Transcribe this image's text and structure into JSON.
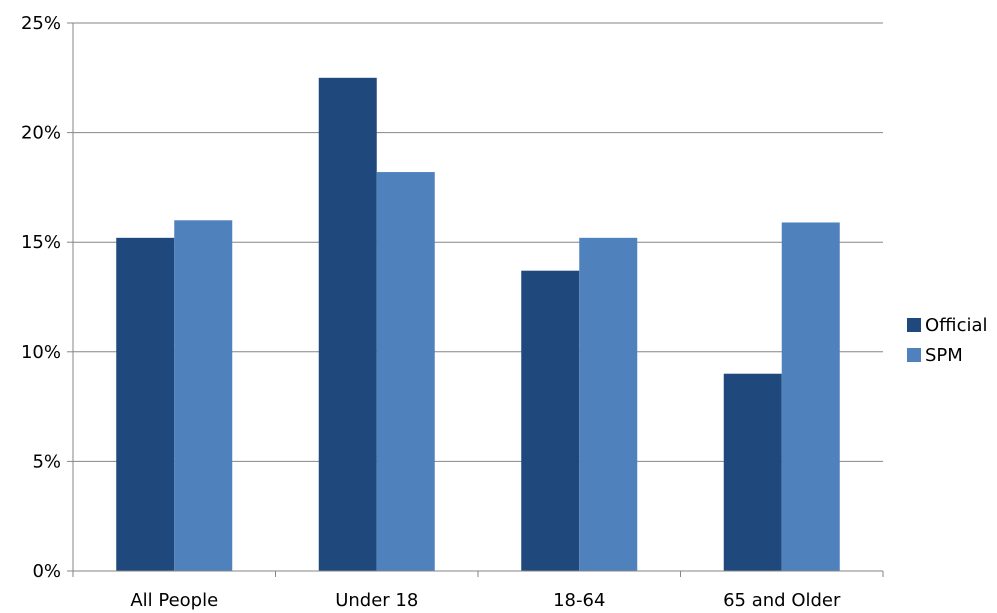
{
  "chart_data": {
    "type": "bar",
    "title": "",
    "xlabel": "",
    "ylabel": "",
    "categories": [
      "All People",
      "Under 18",
      "18-64",
      "65 and Older"
    ],
    "series": [
      {
        "name": "Official",
        "values": [
          15.2,
          22.5,
          13.7,
          9.0
        ],
        "color": "#1F497D"
      },
      {
        "name": "SPM",
        "values": [
          16.0,
          18.2,
          15.2,
          15.9
        ],
        "color": "#4F81BD"
      }
    ],
    "ylim": [
      0,
      25
    ],
    "yticks": [
      0,
      5,
      10,
      15,
      20,
      25
    ],
    "ytick_labels": [
      "0%",
      "5%",
      "10%",
      "15%",
      "20%",
      "25%"
    ],
    "grid": true,
    "legend_position": "right",
    "colors": {
      "gridline": "#868686",
      "axis": "#868686"
    }
  }
}
